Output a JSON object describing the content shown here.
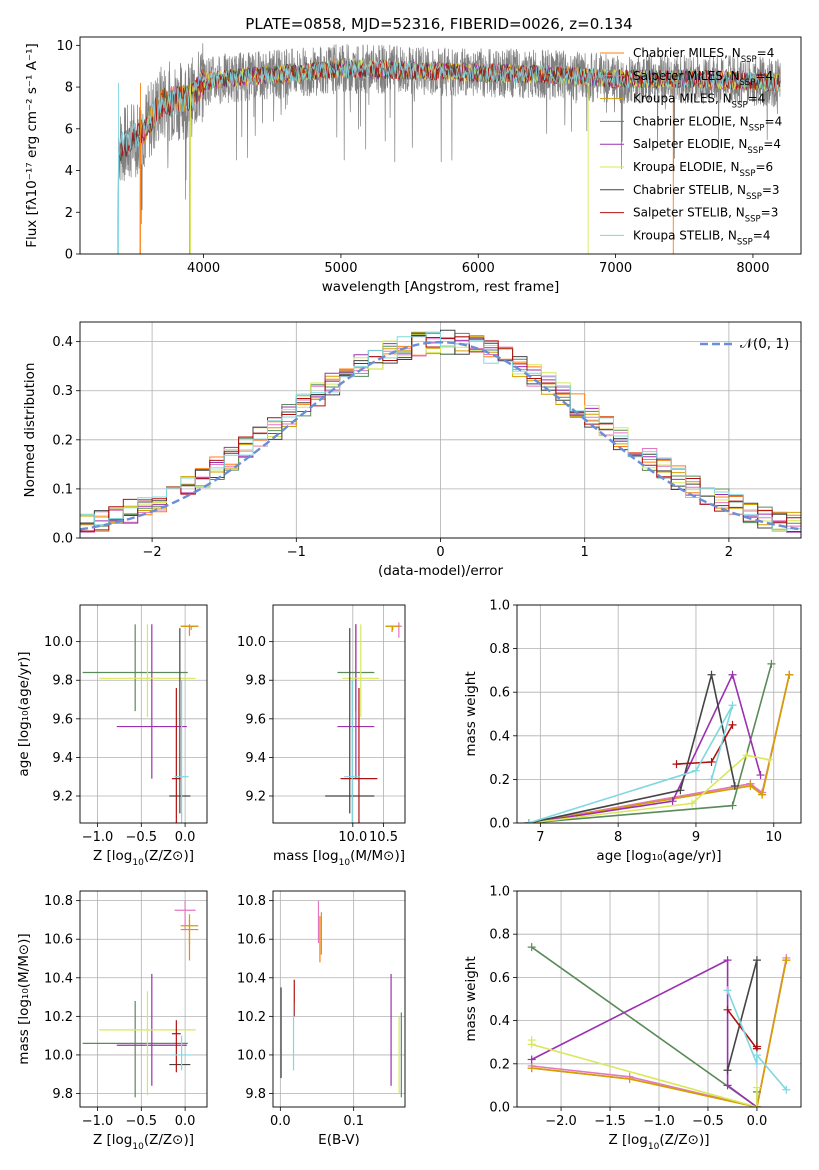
{
  "title": "PLATE=0858, MJD=52316, FIBERID=0026, z=0.134",
  "colors": {
    "Chabrier MILES": "#ff7f0e",
    "Salpeter MILES": "#e377c2",
    "Kroupa MILES": "#d2a000",
    "Chabrier ELODIE": "#5a8a5a",
    "Salpeter ELODIE": "#9b30b0",
    "Kroupa ELODIE": "#d8e85a",
    "Chabrier STELIB": "#444444",
    "Salpeter STELIB": "#b01010",
    "Kroupa STELIB": "#7fd8e0",
    "data": "#808080",
    "gaussian": "#6a8fd8"
  },
  "chart_data": [
    {
      "type": "line",
      "xlabel": "wavelength [Angstrom, rest frame]",
      "ylabel": "Flux [fλ10⁻¹⁷ erg cm⁻² s⁻¹ A⁻¹]",
      "xlim": [
        3100,
        8350
      ],
      "ylim": [
        0,
        10.4
      ],
      "xticks": [
        "4000",
        "5000",
        "6000",
        "7000",
        "8000"
      ],
      "yticks": [
        "0",
        "2",
        "4",
        "6",
        "8",
        "10"
      ],
      "grid": false,
      "legend_position": "right",
      "legend": [
        {
          "label": "Chabrier MILES, N",
          "sub": "SSP",
          "tail": "=4"
        },
        {
          "label": "Salpeter MILES, N",
          "sub": "SSP",
          "tail": "=4"
        },
        {
          "label": "Kroupa MILES, N",
          "sub": "SSP",
          "tail": "=4"
        },
        {
          "label": "Chabrier ELODIE, N",
          "sub": "SSP",
          "tail": "=4"
        },
        {
          "label": "Salpeter ELODIE, N",
          "sub": "SSP",
          "tail": "=4"
        },
        {
          "label": "Kroupa ELODIE, N",
          "sub": "SSP",
          "tail": "=6"
        },
        {
          "label": "Chabrier STELIB, N",
          "sub": "SSP",
          "tail": "=3"
        },
        {
          "label": "Salpeter STELIB, N",
          "sub": "SSP",
          "tail": "=3"
        },
        {
          "label": "Kroupa STELIB, N",
          "sub": "SSP",
          "tail": "=4"
        }
      ],
      "spectrum_shape": {
        "x": [
          3380,
          3450,
          3550,
          3700,
          3900,
          4000,
          4300,
          4700,
          5000,
          5500,
          6000,
          6500,
          7000,
          7500,
          8000,
          8200
        ],
        "y": [
          5.1,
          5.3,
          5.8,
          7.3,
          7.4,
          8.3,
          8.5,
          8.7,
          8.9,
          8.8,
          8.7,
          8.6,
          8.4,
          8.4,
          8.3,
          8.2
        ]
      },
      "model_start_wavelength": {
        "MILES": 3540,
        "ELODIE": 3900,
        "STELIB": 3380
      }
    },
    {
      "type": "histogram",
      "xlabel": "(data-model)/error",
      "ylabel": "Normed distribution",
      "xlim": [
        -2.5,
        2.5
      ],
      "ylim": [
        0,
        0.44
      ],
      "xticks": [
        "−2",
        "−1",
        "0",
        "1",
        "2"
      ],
      "yticks": [
        "0.0",
        "0.1",
        "0.2",
        "0.3",
        "0.4"
      ],
      "grid": true,
      "legend_position": "top-right",
      "gaussian_label": "𝒩(0, 1)",
      "bin_edges": {
        "start": -2.5,
        "width": 0.1,
        "count": 50
      }
    },
    {
      "type": "errorbar",
      "xlabel_main": "Z [log",
      "xlabel_sub": "10",
      "xlabel_rest": "(Z/Z⊙)]",
      "ylabel": "age  [log₁₀(age/yr)]",
      "xlim": [
        -1.2,
        0.25
      ],
      "ylim": [
        9.06,
        10.19
      ],
      "xticks": [
        "−1.0",
        "−0.5",
        "0.0"
      ],
      "yticks": [
        "9.2",
        "9.4",
        "9.6",
        "9.8",
        "10.0"
      ],
      "points": [
        {
          "model": "Chabrier MILES",
          "x": 0.05,
          "y": 10.08,
          "xerr": 0.1,
          "yerr": [
            0.05,
            0.01
          ]
        },
        {
          "model": "Salpeter MILES",
          "x": 0.07,
          "y": 10.08,
          "xerr": 0.08,
          "yerr": [
            0.02,
            0.0
          ]
        },
        {
          "model": "Kroupa MILES",
          "x": 0.05,
          "y": 10.08,
          "xerr": 0.1,
          "yerr": [
            0.01,
            0.0
          ]
        },
        {
          "model": "Chabrier ELODIE",
          "x": -0.57,
          "y": 9.84,
          "xerr": 0.6,
          "yerr": [
            0.2,
            0.25
          ]
        },
        {
          "model": "Salpeter ELODIE",
          "x": -0.38,
          "y": 9.56,
          "xerr": 0.4,
          "yerr": [
            0.27,
            0.53
          ]
        },
        {
          "model": "Kroupa ELODIE",
          "x": -0.43,
          "y": 9.81,
          "xerr": 0.55,
          "yerr": [
            0.2,
            0.28
          ]
        },
        {
          "model": "Chabrier STELIB",
          "x": -0.06,
          "y": 9.2,
          "xerr": 0.12,
          "yerr": [
            0.09,
            0.87
          ]
        },
        {
          "model": "Salpeter STELIB",
          "x": -0.1,
          "y": 9.29,
          "xerr": 0.05,
          "yerr": [
            0.25,
            0.47
          ]
        },
        {
          "model": "Kroupa STELIB",
          "x": -0.04,
          "y": 9.3,
          "xerr": 0.08,
          "yerr": [
            0.3,
            0.5
          ]
        }
      ]
    },
    {
      "type": "errorbar",
      "xlabel_main": "mass [log",
      "xlabel_sub": "10",
      "xlabel_rest": "(M/M⊙)]",
      "ylabel": "",
      "xlim": [
        8.7,
        10.85
      ],
      "ylim": [
        9.06,
        10.19
      ],
      "xticks": [
        "10.0",
        "10.5"
      ],
      "yticks": [
        "9.2",
        "9.4",
        "9.6",
        "9.8",
        "10.0"
      ],
      "points": [
        {
          "model": "Chabrier MILES",
          "x": 10.64,
          "y": 10.08,
          "xerr": 0.1,
          "yerr": [
            0.03,
            0.0
          ]
        },
        {
          "model": "Salpeter MILES",
          "x": 10.75,
          "y": 10.08,
          "xerr": 0.05,
          "yerr": [
            0.06,
            0.02
          ]
        },
        {
          "model": "Kroupa MILES",
          "x": 10.65,
          "y": 10.08,
          "xerr": 0.12,
          "yerr": [
            0.02,
            0.0
          ]
        },
        {
          "model": "Chabrier ELODIE",
          "x": 10.05,
          "y": 9.84,
          "xerr": 0.3,
          "yerr": [
            0.2,
            0.25
          ]
        },
        {
          "model": "Salpeter ELODIE",
          "x": 10.05,
          "y": 9.56,
          "xerr": 0.3,
          "yerr": [
            0.27,
            0.53
          ]
        },
        {
          "model": "Kroupa ELODIE",
          "x": 10.13,
          "y": 9.81,
          "xerr": 0.3,
          "yerr": [
            0.2,
            0.28
          ]
        },
        {
          "model": "Chabrier STELIB",
          "x": 9.95,
          "y": 9.2,
          "xerr": 0.4,
          "yerr": [
            0.09,
            0.87
          ]
        },
        {
          "model": "Salpeter STELIB",
          "x": 10.1,
          "y": 9.29,
          "xerr": 0.3,
          "yerr": [
            0.25,
            0.47
          ]
        },
        {
          "model": "Kroupa STELIB",
          "x": 9.99,
          "y": 9.3,
          "xerr": 0.13,
          "yerr": [
            0.3,
            0.5
          ]
        }
      ]
    },
    {
      "type": "line",
      "xlabel": "age  [log₁₀(age/yr)]",
      "ylabel": "mass weight",
      "xlim": [
        6.7,
        10.35
      ],
      "ylim": [
        0,
        1
      ],
      "xticks": [
        "7",
        "8",
        "9",
        "10"
      ],
      "yticks": [
        "0.0",
        "0.2",
        "0.4",
        "0.6",
        "0.8",
        "1.0"
      ],
      "series": [
        {
          "model": "Chabrier MILES",
          "x": [
            6.85,
            9.7,
            9.85,
            10.2
          ],
          "y": [
            0.0,
            0.18,
            0.13,
            0.68
          ]
        },
        {
          "model": "Salpeter MILES",
          "x": [
            6.85,
            9.7,
            9.85,
            10.2
          ],
          "y": [
            0.0,
            0.18,
            0.14,
            0.68
          ]
        },
        {
          "model": "Kroupa MILES",
          "x": [
            6.85,
            9.7,
            9.85,
            10.2
          ],
          "y": [
            0.0,
            0.17,
            0.13,
            0.68
          ]
        },
        {
          "model": "Chabrier ELODIE",
          "x": [
            6.85,
            9.47,
            9.97
          ],
          "y": [
            0.0,
            0.08,
            0.73
          ]
        },
        {
          "model": "Salpeter ELODIE",
          "x": [
            6.85,
            8.7,
            9.47,
            9.83
          ],
          "y": [
            0.0,
            0.1,
            0.68,
            0.22
          ]
        },
        {
          "model": "Kroupa ELODIE",
          "x": [
            6.85,
            8.95,
            9.65,
            9.95
          ],
          "y": [
            0.0,
            0.09,
            0.31,
            0.29
          ]
        },
        {
          "model": "Chabrier STELIB",
          "x": [
            6.85,
            8.8,
            9.2,
            9.5
          ],
          "y": [
            0.0,
            0.15,
            0.68,
            0.17
          ]
        },
        {
          "model": "Salpeter STELIB",
          "x": [
            8.75,
            9.2,
            9.47
          ],
          "y": [
            0.27,
            0.28,
            0.45
          ]
        },
        {
          "model": "Kroupa STELIB",
          "x": [
            6.85,
            9.0,
            9.47,
            9.2
          ],
          "y": [
            0.0,
            0.24,
            0.54,
            0.2
          ]
        }
      ]
    },
    {
      "type": "errorbar",
      "xlabel_main": "Z [log",
      "xlabel_sub": "10",
      "xlabel_rest": "(Z/Z⊙)]",
      "ylabel": "mass [log₁₀(M/M⊙)]",
      "xlim": [
        -1.2,
        0.25
      ],
      "ylim": [
        9.73,
        10.85
      ],
      "xticks": [
        "−1.0",
        "−0.5",
        "0.0"
      ],
      "yticks": [
        "9.8",
        "10.0",
        "10.2",
        "10.4",
        "10.6",
        "10.8"
      ],
      "points": [
        {
          "model": "Chabrier MILES",
          "x": 0.05,
          "y": 10.65,
          "xerr": 0.1,
          "yerr": [
            0.16,
            0.05
          ]
        },
        {
          "model": "Salpeter MILES",
          "x": 0.0,
          "y": 10.75,
          "xerr": 0.12,
          "yerr": [
            0.1,
            0.05
          ]
        },
        {
          "model": "Kroupa MILES",
          "x": 0.05,
          "y": 10.67,
          "xerr": 0.1,
          "yerr": [
            0.1,
            0.06
          ]
        },
        {
          "model": "Chabrier ELODIE",
          "x": -0.57,
          "y": 10.06,
          "xerr": 0.6,
          "yerr": [
            0.28,
            0.22
          ]
        },
        {
          "model": "Salpeter ELODIE",
          "x": -0.38,
          "y": 10.05,
          "xerr": 0.4,
          "yerr": [
            0.21,
            0.37
          ]
        },
        {
          "model": "Kroupa ELODIE",
          "x": -0.43,
          "y": 10.13,
          "xerr": 0.55,
          "yerr": [
            0.34,
            0.2
          ]
        },
        {
          "model": "Chabrier STELIB",
          "x": -0.06,
          "y": 9.95,
          "xerr": 0.12,
          "yerr": [
            0.0,
            0.0
          ]
        },
        {
          "model": "Salpeter STELIB",
          "x": -0.1,
          "y": 10.11,
          "xerr": 0.05,
          "yerr": [
            0.2,
            0.07
          ]
        },
        {
          "model": "Kroupa STELIB",
          "x": -0.04,
          "y": 10.0,
          "xerr": 0.12,
          "yerr": [
            0.08,
            0.1
          ]
        }
      ]
    },
    {
      "type": "errorbar",
      "xlabel": "E(B-V)",
      "ylabel": "",
      "xlim": [
        -0.01,
        0.17
      ],
      "ylim": [
        9.73,
        10.85
      ],
      "xticks": [
        "0.0",
        "0.1"
      ],
      "yticks": [
        "9.8",
        "10.0",
        "10.2",
        "10.4",
        "10.6",
        "10.8"
      ],
      "points": [
        {
          "model": "Chabrier MILES",
          "x": 0.054,
          "y": 10.62,
          "yerr": [
            0.14,
            0.1
          ]
        },
        {
          "model": "Salpeter MILES",
          "x": 0.052,
          "y": 10.68,
          "yerr": [
            0.1,
            0.12
          ]
        },
        {
          "model": "Kroupa MILES",
          "x": 0.056,
          "y": 10.64,
          "yerr": [
            0.12,
            0.1
          ]
        },
        {
          "model": "Chabrier ELODIE",
          "x": 0.165,
          "y": 10.0,
          "yerr": [
            0.22,
            0.22
          ]
        },
        {
          "model": "Salpeter ELODIE",
          "x": 0.151,
          "y": 10.13,
          "yerr": [
            0.29,
            0.29
          ]
        },
        {
          "model": "Kroupa ELODIE",
          "x": 0.162,
          "y": 10.0,
          "yerr": [
            0.2,
            0.2
          ]
        },
        {
          "model": "Chabrier STELIB",
          "x": 0.001,
          "y": 10.11,
          "yerr": [
            0.23,
            0.24
          ]
        },
        {
          "model": "Salpeter STELIB",
          "x": 0.019,
          "y": 10.3,
          "yerr": [
            0.1,
            0.09
          ]
        },
        {
          "model": "Kroupa STELIB",
          "x": 0.018,
          "y": 10.1,
          "yerr": [
            0.18,
            0.17
          ]
        }
      ]
    },
    {
      "type": "line",
      "xlabel_main": "Z [log",
      "xlabel_sub": "10",
      "xlabel_rest": "(Z/Z⊙)]",
      "ylabel": "mass weight",
      "xlim": [
        -2.45,
        0.45
      ],
      "ylim": [
        0,
        1
      ],
      "xticks": [
        "−2.0",
        "−1.5",
        "−1.0",
        "−0.5",
        "0.0"
      ],
      "yticks": [
        "0.0",
        "0.2",
        "0.4",
        "0.6",
        "0.8",
        "1.0"
      ],
      "series": [
        {
          "model": "Chabrier MILES",
          "x": [
            -2.3,
            -1.3,
            0.0,
            0.3
          ],
          "y": [
            0.18,
            0.13,
            0.0,
            0.68
          ]
        },
        {
          "model": "Salpeter MILES",
          "x": [
            -2.3,
            -1.3,
            0.0,
            0.3
          ],
          "y": [
            0.19,
            0.14,
            0.0,
            0.69
          ]
        },
        {
          "model": "Kroupa MILES",
          "x": [
            -2.3,
            -1.3,
            0.0,
            0.3
          ],
          "y": [
            0.18,
            0.13,
            0.0,
            0.68
          ]
        },
        {
          "model": "Chabrier ELODIE",
          "x": [
            -2.3,
            0.0,
            0.0
          ],
          "y": [
            0.74,
            0.0,
            0.07
          ]
        },
        {
          "model": "Salpeter ELODIE",
          "x": [
            -2.3,
            -0.3,
            -0.3,
            0.0
          ],
          "y": [
            0.22,
            0.68,
            0.1,
            0.0
          ]
        },
        {
          "model": "Kroupa ELODIE",
          "x": [
            -2.3,
            -2.3,
            0.0,
            0.0
          ],
          "y": [
            0.31,
            0.29,
            0.0,
            0.09
          ]
        },
        {
          "model": "Chabrier STELIB",
          "x": [
            -0.3,
            0.0,
            0.0
          ],
          "y": [
            0.17,
            0.68,
            0.27
          ]
        },
        {
          "model": "Salpeter STELIB",
          "x": [
            -0.3,
            0.0,
            0.0
          ],
          "y": [
            0.45,
            0.27,
            0.28
          ]
        },
        {
          "model": "Kroupa STELIB",
          "x": [
            -0.3,
            0.0,
            0.0,
            0.3
          ],
          "y": [
            0.54,
            0.2,
            0.24,
            0.08
          ]
        }
      ]
    }
  ]
}
